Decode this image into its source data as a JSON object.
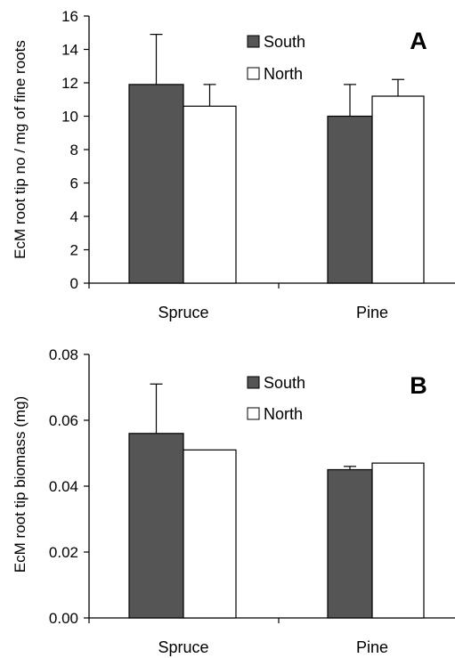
{
  "chart_data": [
    {
      "type": "bar",
      "panel_label": "A",
      "categories": [
        "Spruce",
        "Pine"
      ],
      "series": [
        {
          "name": "South",
          "color": "#555555",
          "values": [
            11.9,
            10.0
          ],
          "error": [
            3.0,
            1.9
          ]
        },
        {
          "name": "North",
          "color": "#ffffff",
          "values": [
            10.6,
            11.2
          ],
          "error": [
            1.3,
            1.0
          ]
        }
      ],
      "ylabel": "EcM root tip no / mg of fine roots",
      "ylim": [
        0,
        16
      ],
      "yticks": [
        "0",
        "2",
        "4",
        "6",
        "8",
        "10",
        "12",
        "14",
        "16"
      ],
      "legend": "top-center"
    },
    {
      "type": "bar",
      "panel_label": "B",
      "categories": [
        "Spruce",
        "Pine"
      ],
      "series": [
        {
          "name": "South",
          "color": "#555555",
          "values": [
            0.056,
            0.045
          ],
          "error": [
            0.015,
            0.001
          ]
        },
        {
          "name": "North",
          "color": "#ffffff",
          "values": [
            0.051,
            0.047
          ],
          "error": [
            0,
            0
          ]
        }
      ],
      "ylabel": "EcM root tip biomass (mg)",
      "ylim": [
        0,
        0.08
      ],
      "yticks": [
        "0.00",
        "0.02",
        "0.04",
        "0.06",
        "0.08"
      ],
      "legend": "top-center"
    }
  ]
}
